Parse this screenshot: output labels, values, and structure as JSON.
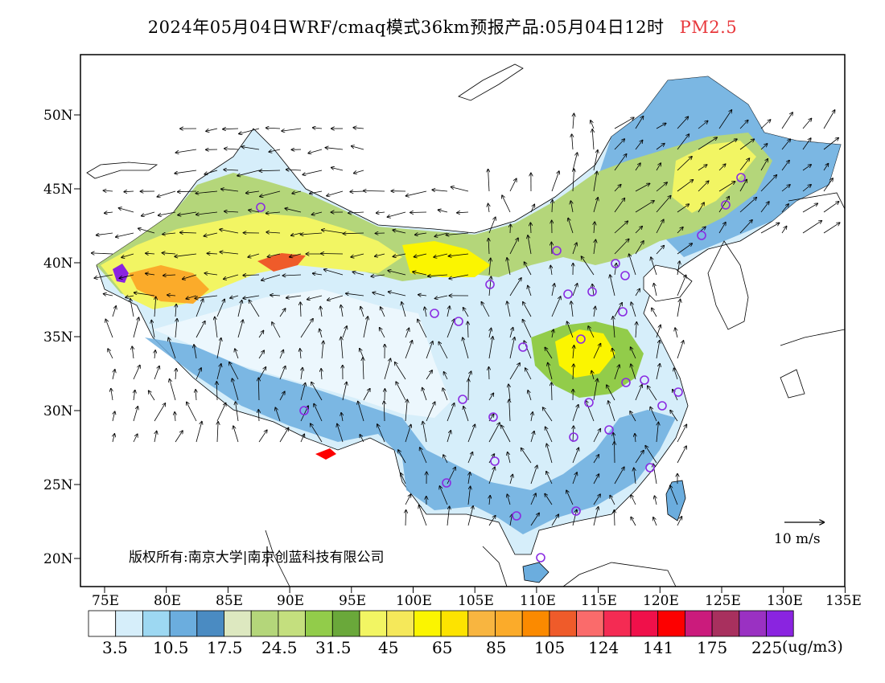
{
  "title": {
    "main": "2024年05月04日WRF/cmaq模式36km预报产品:05月04日12时",
    "variable": "PM2.5",
    "variable_color": "#e8383c"
  },
  "axes": {
    "lat_labels": [
      "50N",
      "45N",
      "40N",
      "35N",
      "30N",
      "25N",
      "20N"
    ],
    "lon_labels": [
      "75E",
      "80E",
      "85E",
      "90E",
      "95E",
      "100E",
      "105E",
      "110E",
      "115E",
      "120E",
      "125E",
      "130E",
      "135E"
    ]
  },
  "colorbar": {
    "colors": [
      "#ffffff",
      "#d6eefa",
      "#9dd8f2",
      "#6badde",
      "#4a8bc2",
      "#dde8c0",
      "#b4d67a",
      "#c4df7e",
      "#92cc4a",
      "#6aa83a",
      "#f2f563",
      "#f5e85a",
      "#fbf500",
      "#fde300",
      "#f8b540",
      "#fbab2a",
      "#fb8a00",
      "#ef5b2a",
      "#fa6b6b",
      "#f42b53",
      "#f0104a",
      "#fd0000",
      "#cb1b7c",
      "#a8305e",
      "#9a31c2",
      "#8a24e0"
    ],
    "labels": [
      "3.5",
      "10.5",
      "17.5",
      "24.5",
      "31.5",
      "45",
      "65",
      "85",
      "105",
      "124",
      "141",
      "175",
      "225"
    ],
    "unit": "(ug/m3)"
  },
  "map": {
    "copyright": "版权所有:南京大学|南京创蓝科技有限公司",
    "wind_scale_label": "10 m/s",
    "station_marker_color": "#8a2be2",
    "wind_arrow_color": "#000000"
  }
}
